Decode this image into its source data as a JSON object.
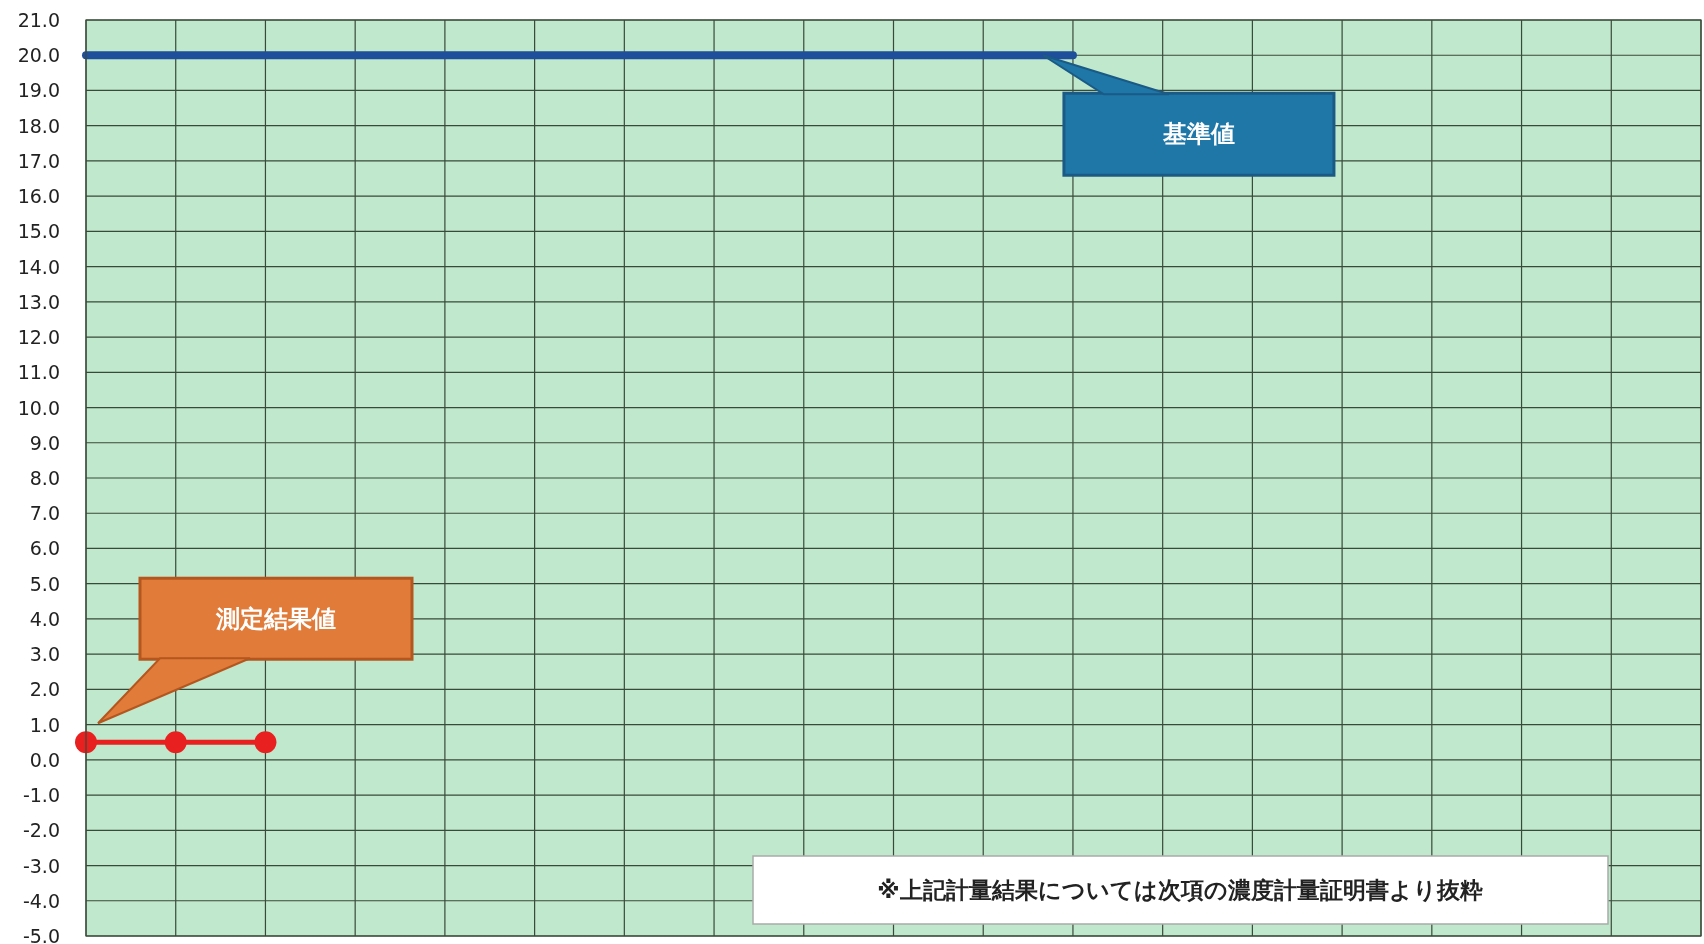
{
  "chart_data": {
    "type": "line",
    "categories": [
      null,
      null,
      null,
      null,
      null,
      null,
      null,
      null,
      null,
      null,
      null,
      null,
      null,
      null,
      null,
      null,
      null,
      null,
      null
    ],
    "series": [
      {
        "name": "基準値",
        "color": "#1f4e9a",
        "marker": "none",
        "values": [
          20,
          20,
          20,
          20,
          20,
          20,
          20,
          20,
          20,
          20,
          20,
          20,
          null,
          null,
          null,
          null,
          null,
          null,
          null
        ]
      },
      {
        "name": "測定結果値",
        "color": "#e82020",
        "marker": "circle",
        "values": [
          0.5,
          0.5,
          0.5,
          null,
          null,
          null,
          null,
          null,
          null,
          null,
          null,
          null,
          null,
          null,
          null,
          null,
          null,
          null,
          null
        ]
      }
    ],
    "ylim": [
      -5,
      21
    ],
    "yticks": [
      {
        "value": -5,
        "label": "-5.0"
      },
      {
        "value": -4,
        "label": "-4.0"
      },
      {
        "value": -3,
        "label": "-3.0"
      },
      {
        "value": -2,
        "label": "-2.0"
      },
      {
        "value": -1,
        "label": "-1.0"
      },
      {
        "value": 0,
        "label": "0.0"
      },
      {
        "value": 1,
        "label": "1.0"
      },
      {
        "value": 2,
        "label": "2.0"
      },
      {
        "value": 3,
        "label": "3.0"
      },
      {
        "value": 4,
        "label": "4.0"
      },
      {
        "value": 5,
        "label": "5.0"
      },
      {
        "value": 6,
        "label": "6.0"
      },
      {
        "value": 7,
        "label": "7.0"
      },
      {
        "value": 8,
        "label": "8.0"
      },
      {
        "value": 9,
        "label": "9.0"
      },
      {
        "value": 10,
        "label": "10.0"
      },
      {
        "value": 11,
        "label": "11.0"
      },
      {
        "value": 12,
        "label": "12.0"
      },
      {
        "value": 13,
        "label": "13.0"
      },
      {
        "value": 14,
        "label": "14.0"
      },
      {
        "value": 15,
        "label": "15.0"
      },
      {
        "value": 16,
        "label": "16.0"
      },
      {
        "value": 17,
        "label": "17.0"
      },
      {
        "value": 18,
        "label": "18.0"
      },
      {
        "value": 19,
        "label": "19.0"
      },
      {
        "value": 20,
        "label": "20.0"
      },
      {
        "value": 21,
        "label": "21.0"
      }
    ],
    "grid": true,
    "tick_labels": "y",
    "annotations": [
      "※上記計量結果については次項の濃度計量証明書より抜粋"
    ]
  }
}
